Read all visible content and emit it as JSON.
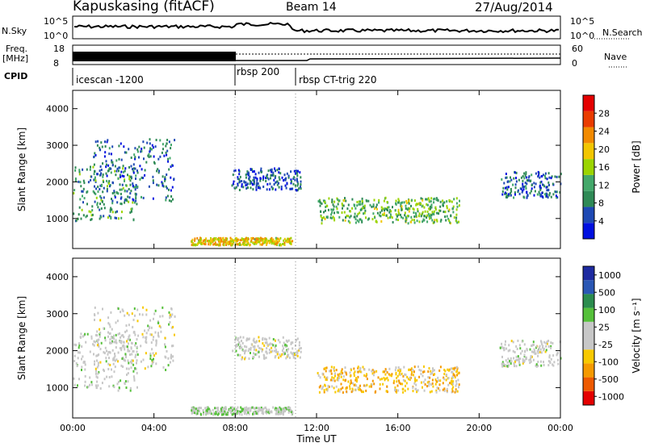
{
  "header": {
    "radar": "Kapuskasing (fitACF)",
    "beam": "Beam 14",
    "date": "27/Aug/2014"
  },
  "meta_panels": {
    "nsky_label": "N.Sky",
    "nsky_ticks": [
      "10^5",
      "10^0"
    ],
    "nsearch_label": "N.Search",
    "freq_label": "Freq.",
    "freq_unit": "[MHz]",
    "freq_ticks": [
      "18",
      "8"
    ],
    "nave_label": "Nave",
    "nave_ticks": [
      "60",
      "0"
    ],
    "cpid_label": "CPID",
    "cpid_modes": [
      "icescan -1200",
      "rbsp 200",
      "rbsp CT-trig 220"
    ]
  },
  "colors": {
    "power_scale": [
      "#0010e0",
      "#1e49b4",
      "#2f8a56",
      "#43a86a",
      "#9bd400",
      "#f2c600",
      "#f28a00",
      "#ea3c00",
      "#e40000"
    ],
    "velocity_scale": [
      "#e40000",
      "#ee5a00",
      "#f59a00",
      "#f8c900",
      "#c7c7c7",
      "#c7c7c7",
      "#55c03a",
      "#2b8c4e",
      "#2a57b4",
      "#1d2aa0"
    ],
    "ground_scatter": "#bdbdbd"
  },
  "chart_data": [
    {
      "type": "heatmap",
      "panel": "power",
      "ylabel": "Slant Range [km]",
      "xlabel": "",
      "ylim": [
        180,
        4500
      ],
      "yticks": [
        1000,
        2000,
        3000,
        4000
      ],
      "xticks": [
        "00:00",
        "04:00",
        "08:00",
        "12:00",
        "16:00",
        "20:00",
        "00:00"
      ],
      "colorbar_label": "Power [dB]",
      "colorbar_ticks": [
        "4",
        "8",
        "12",
        "16",
        "20",
        "24",
        "28"
      ],
      "clim": [
        0,
        30
      ],
      "scatter_regions": [
        {
          "t_start": 0.0,
          "t_end": 3.2,
          "r_low": 950,
          "r_high": 2500,
          "level": 10
        },
        {
          "t_start": 1.0,
          "t_end": 5.0,
          "r_low": 1500,
          "r_high": 3200,
          "level": 6
        },
        {
          "t_start": 5.8,
          "t_end": 10.8,
          "r_low": 300,
          "r_high": 500,
          "level": 18
        },
        {
          "t_start": 7.8,
          "t_end": 11.2,
          "r_low": 1800,
          "r_high": 2400,
          "level": 5
        },
        {
          "t_start": 12.0,
          "t_end": 19.0,
          "r_low": 900,
          "r_high": 1600,
          "level": 12
        },
        {
          "t_start": 21.0,
          "t_end": 24.0,
          "r_low": 1600,
          "r_high": 2300,
          "level": 6
        }
      ]
    },
    {
      "type": "heatmap",
      "panel": "velocity",
      "ylabel": "Slant Range [km]",
      "xlabel": "Time UT",
      "ylim": [
        180,
        4500
      ],
      "yticks": [
        1000,
        2000,
        3000,
        4000
      ],
      "xticks": [
        "00:00",
        "04:00",
        "08:00",
        "12:00",
        "16:00",
        "20:00",
        "00:00"
      ],
      "colorbar_label": "Velocity [m s⁻¹]",
      "colorbar_ticks": [
        "1000",
        "500",
        "100",
        "25",
        "-25",
        "-100",
        "-500",
        "-1000"
      ],
      "clim": [
        -1000,
        1000
      ],
      "scatter_regions": [
        {
          "t_start": 0.0,
          "t_end": 3.2,
          "r_low": 950,
          "r_high": 2500,
          "level": 50
        },
        {
          "t_start": 1.0,
          "t_end": 5.0,
          "r_low": 1500,
          "r_high": 3200,
          "level": 0
        },
        {
          "t_start": 5.8,
          "t_end": 10.8,
          "r_low": 300,
          "r_high": 500,
          "level": 150
        },
        {
          "t_start": 7.8,
          "t_end": 11.2,
          "r_low": 1800,
          "r_high": 2400,
          "level": 0
        },
        {
          "t_start": 12.0,
          "t_end": 19.0,
          "r_low": 900,
          "r_high": 1600,
          "level": -300
        },
        {
          "t_start": 21.0,
          "t_end": 24.0,
          "r_low": 1600,
          "r_high": 2300,
          "level": 0
        }
      ]
    }
  ]
}
